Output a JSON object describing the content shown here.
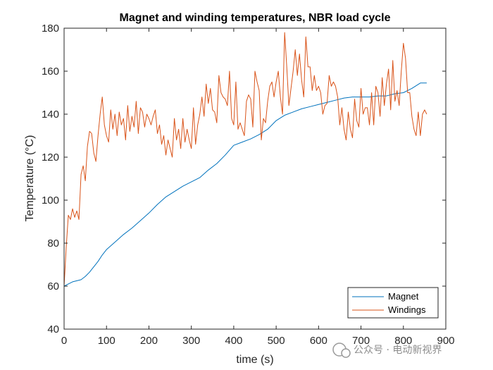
{
  "watermark": {
    "text": "公众号 · 电动新视界"
  },
  "chart_data": {
    "type": "line",
    "title": "Magnet and winding temperatures, NBR load cycle",
    "xlabel": "time (s)",
    "ylabel": "Temperature (°C)",
    "xlim": [
      0,
      900
    ],
    "ylim": [
      40,
      180
    ],
    "xticks": [
      0,
      100,
      200,
      300,
      400,
      500,
      600,
      700,
      800,
      900
    ],
    "yticks": [
      40,
      60,
      80,
      100,
      120,
      140,
      160,
      180
    ],
    "grid": false,
    "legend_position": "bottom-right",
    "series": [
      {
        "name": "Magnet",
        "color": "#0072BD",
        "x": [
          0,
          10,
          20,
          30,
          40,
          50,
          60,
          70,
          80,
          90,
          100,
          120,
          140,
          160,
          180,
          200,
          220,
          240,
          260,
          280,
          300,
          320,
          340,
          360,
          380,
          400,
          420,
          440,
          460,
          480,
          500,
          520,
          540,
          560,
          580,
          600,
          620,
          640,
          660,
          680,
          700,
          720,
          740,
          760,
          780,
          800,
          820,
          840,
          855
        ],
        "values": [
          60,
          61,
          62,
          62.5,
          63,
          64.5,
          66.5,
          69,
          71.5,
          74.5,
          77,
          80.5,
          84,
          87,
          90.5,
          94,
          98,
          101.5,
          104,
          106.5,
          108.5,
          110.5,
          114,
          117,
          121,
          125.5,
          127,
          128.5,
          130.5,
          133,
          137,
          139.5,
          141,
          142.5,
          143.5,
          144.5,
          145.5,
          146.5,
          147.5,
          148,
          148,
          148,
          148.5,
          148.5,
          149.5,
          150,
          152,
          154.5,
          154.5
        ]
      },
      {
        "name": "Windings",
        "color": "#D95319",
        "x": [
          0,
          5,
          10,
          15,
          20,
          25,
          30,
          35,
          40,
          45,
          50,
          55,
          60,
          65,
          70,
          75,
          80,
          85,
          90,
          95,
          100,
          105,
          110,
          115,
          120,
          125,
          130,
          135,
          140,
          145,
          150,
          155,
          160,
          165,
          170,
          175,
          180,
          185,
          190,
          195,
          200,
          205,
          210,
          215,
          220,
          225,
          230,
          235,
          240,
          245,
          250,
          255,
          260,
          265,
          270,
          275,
          280,
          285,
          290,
          295,
          300,
          305,
          310,
          315,
          320,
          325,
          330,
          335,
          340,
          345,
          350,
          355,
          360,
          365,
          370,
          375,
          380,
          385,
          390,
          395,
          400,
          405,
          410,
          415,
          420,
          425,
          430,
          435,
          440,
          445,
          450,
          455,
          460,
          465,
          470,
          475,
          480,
          485,
          490,
          495,
          500,
          505,
          510,
          515,
          520,
          525,
          530,
          535,
          540,
          545,
          550,
          555,
          560,
          565,
          570,
          575,
          580,
          585,
          590,
          595,
          600,
          605,
          610,
          615,
          620,
          625,
          630,
          635,
          640,
          645,
          650,
          655,
          660,
          665,
          670,
          675,
          680,
          685,
          690,
          695,
          700,
          705,
          710,
          715,
          720,
          725,
          730,
          735,
          740,
          745,
          750,
          755,
          760,
          765,
          770,
          775,
          780,
          785,
          790,
          795,
          800,
          805,
          810,
          815,
          820,
          825,
          830,
          835,
          840,
          845,
          850,
          855
        ],
        "values": [
          60,
          78,
          93,
          91,
          96,
          92,
          95,
          91,
          112,
          116,
          109,
          125,
          132,
          131,
          122,
          118,
          130,
          140,
          148,
          135,
          130,
          127,
          142,
          133,
          140,
          130,
          141,
          135,
          138,
          128,
          144,
          132,
          139,
          134,
          146,
          131,
          143,
          141,
          134,
          140,
          138,
          135,
          139,
          142,
          131,
          135,
          126,
          130,
          121,
          128,
          124,
          120,
          138,
          128,
          133,
          124,
          138,
          127,
          133,
          128,
          124,
          143,
          126,
          135,
          140,
          148,
          139,
          154,
          145,
          152,
          142,
          141,
          136,
          158,
          150,
          148,
          147,
          144,
          160,
          138,
          135,
          155,
          133,
          136,
          133,
          130,
          146,
          149,
          147,
          134,
          160,
          155,
          151,
          128,
          138,
          136,
          146,
          153,
          155,
          148,
          155,
          160,
          148,
          140,
          178,
          162,
          144,
          152,
          160,
          170,
          158,
          168,
          156,
          148,
          176,
          162,
          162,
          151,
          158,
          151,
          153,
          150,
          140,
          144,
          145,
          158,
          153,
          155,
          153,
          148,
          135,
          143,
          133,
          128,
          141,
          133,
          129,
          147,
          137,
          134,
          152,
          140,
          143,
          143,
          135,
          150,
          135,
          153,
          150,
          139,
          157,
          144,
          154,
          161,
          142,
          165,
          146,
          151,
          144,
          160,
          173,
          166,
          150,
          150,
          139,
          133,
          130,
          141,
          130,
          140,
          142,
          140
        ]
      }
    ]
  }
}
